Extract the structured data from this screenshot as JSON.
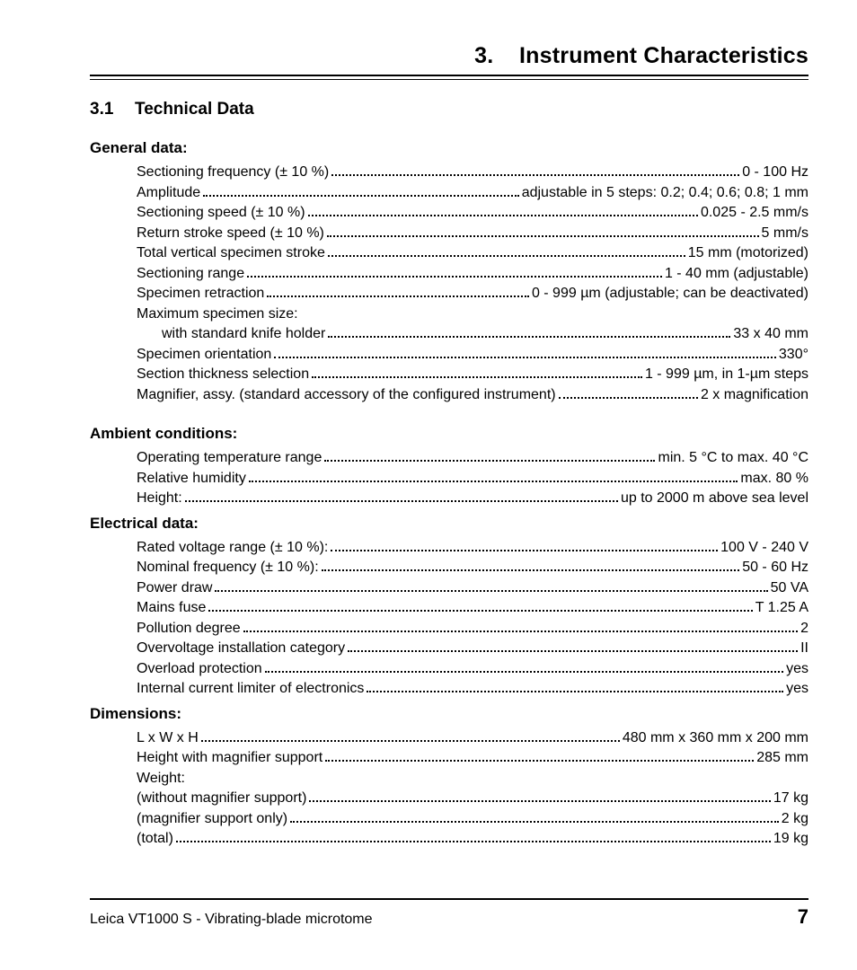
{
  "chapter": {
    "number": "3.",
    "title": "Instrument Characteristics"
  },
  "section": {
    "number": "3.1",
    "title": "Technical Data"
  },
  "blocks": [
    {
      "heading": "General data:",
      "rows": [
        {
          "label": "Sectioning frequency (± 10 %)",
          "value": "0 - 100 Hz"
        },
        {
          "label": "Amplitude",
          "value": "adjustable in 5 steps: 0.2; 0.4; 0.6; 0.8; 1 mm"
        },
        {
          "label": "Sectioning speed (± 10 %)",
          "value": "0.025 - 2.5 mm/s"
        },
        {
          "label": "Return stroke speed (± 10 %)",
          "value": "5 mm/s"
        },
        {
          "label": "Total vertical specimen stroke",
          "value": "15 mm (motorized)"
        },
        {
          "label": "Sectioning range",
          "value": "1 - 40 mm (adjustable)"
        },
        {
          "label": "Specimen retraction",
          "value": "0 - 999 µm (adjustable; can be deactivated)"
        },
        {
          "label": "Maximum specimen size:",
          "no_leader": true
        },
        {
          "label": "with standard knife holder",
          "value": "33 x 40 mm",
          "indent": 1
        },
        {
          "label": "Specimen orientation",
          "value": "330°"
        },
        {
          "label": "Section thickness selection",
          "value": "1 - 999 µm, in 1-µm steps"
        },
        {
          "label": "Magnifier, assy. (standard accessory of the configured instrument)",
          "value": "2 x magnification"
        }
      ],
      "gap_after": true
    },
    {
      "heading": "Ambient conditions:",
      "rows": [
        {
          "label": "Operating temperature range",
          "value": "min. 5 °C to max. 40 °C"
        },
        {
          "label": "Relative humidity",
          "value": "max. 80 %"
        },
        {
          "label": "Height:",
          "value": "up to 2000 m above sea level"
        }
      ]
    },
    {
      "heading": "Electrical data:",
      "rows": [
        {
          "label": "Rated voltage range (± 10 %):",
          "value": "100 V - 240 V"
        },
        {
          "label": "Nominal frequency (± 10 %):",
          "value": "50 - 60 Hz"
        },
        {
          "label": "Power draw",
          "value": "50 VA"
        },
        {
          "label": "Mains fuse",
          "value": "T 1.25 A"
        },
        {
          "label": "Pollution degree",
          "value": "2"
        },
        {
          "label": "Overvoltage installation category",
          "value": "II"
        },
        {
          "label": "Overload protection",
          "value": "yes"
        },
        {
          "label": "Internal current limiter of electronics",
          "value": "yes"
        }
      ]
    },
    {
      "heading": "Dimensions:",
      "rows": [
        {
          "label": "L x W x H",
          "value": "480 mm x 360 mm x 200 mm"
        },
        {
          "label": "Height with magnifier support",
          "value": "285 mm"
        },
        {
          "label": "Weight:",
          "no_leader": true
        },
        {
          "label": "(without magnifier support)",
          "value": "17 kg"
        },
        {
          "label": "(magnifier support only)",
          "value": "2 kg"
        },
        {
          "label": "(total)",
          "value": "19 kg"
        }
      ]
    }
  ],
  "footer": {
    "product": "Leica VT1000 S - Vibrating-blade microtome",
    "page": "7"
  }
}
